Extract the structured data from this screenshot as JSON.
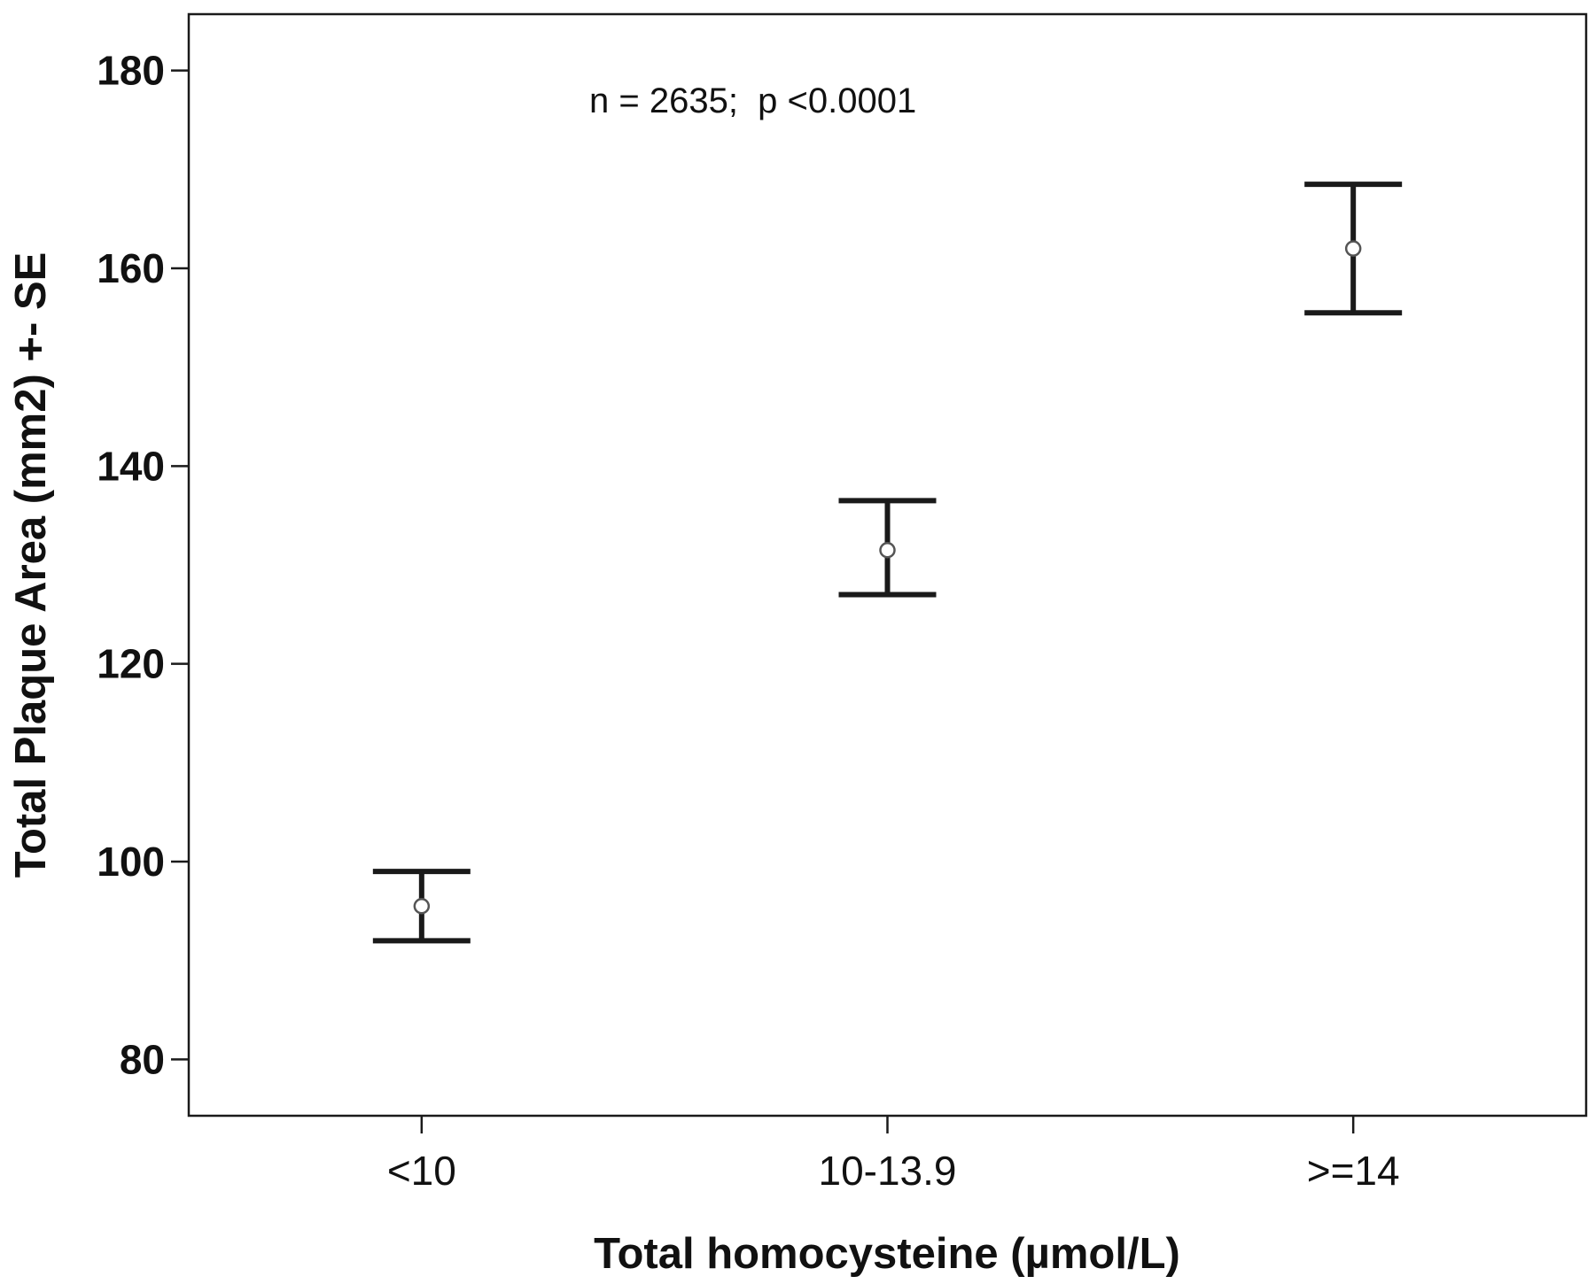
{
  "chart_data": {
    "type": "errorbar",
    "annotation": "n = 2635;  p <0.0001",
    "xlabel": "Total homocysteine (µmol/L)",
    "ylabel": "Total Plaque Area (mm2) +- SE",
    "categories": [
      "<10",
      "10-13.9",
      ">=14"
    ],
    "series": [
      {
        "mean": [
          95.5,
          131.5,
          162
        ],
        "lower": [
          92,
          127,
          155.5
        ],
        "upper": [
          99,
          136.5,
          168.5
        ]
      }
    ],
    "yticks": [
      80,
      100,
      120,
      140,
      160,
      180
    ],
    "ylim": [
      74.3,
      185.7
    ],
    "grid": false,
    "colors": {
      "line": "#1a1a1a",
      "marker": "#555555",
      "frame": "#1a1a1a"
    }
  }
}
